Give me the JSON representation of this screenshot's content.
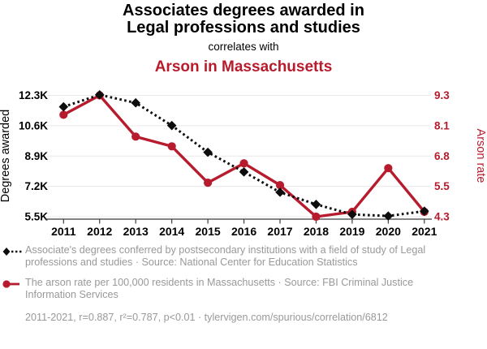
{
  "header": {
    "title_line1": "Associates degrees awarded in",
    "title_line2": "Legal professions and studies",
    "subtitle": "correlates with",
    "red_title": "Arson in Massachusetts"
  },
  "chart_data": {
    "type": "line",
    "title": "Associates degrees awarded in Legal professions and studies correlates with Arson in Massachusetts",
    "x": [
      "2011",
      "2012",
      "2013",
      "2014",
      "2015",
      "2016",
      "2017",
      "2018",
      "2019",
      "2020",
      "2021"
    ],
    "series": [
      {
        "name": "Associate's degrees in Legal professions and studies",
        "axis": "left",
        "marker": "diamond",
        "line_style": "dotted",
        "color": "#0d0d0d",
        "values": [
          11660,
          12330,
          11880,
          10610,
          9110,
          8010,
          6870,
          6190,
          5630,
          5540,
          5810
        ]
      },
      {
        "name": "Arson rate in Massachusetts",
        "axis": "right",
        "marker": "circle",
        "line_style": "solid",
        "color": "#b71c2e",
        "values": [
          8.5,
          9.3,
          7.6,
          7.2,
          5.7,
          6.5,
          5.6,
          4.3,
          4.5,
          6.3,
          4.5
        ]
      }
    ],
    "left_axis": {
      "label": "Degrees awarded",
      "tick_labels": [
        "12.3K",
        "10.6K",
        "8.9K",
        "7.2K",
        "5.5K"
      ],
      "max": 12300,
      "min": 5500
    },
    "right_axis": {
      "label": "Arson rate",
      "tick_labels": [
        "9.3",
        "8.1",
        "6.8",
        "5.5",
        "4.3"
      ],
      "max": 9.3,
      "min": 4.3
    },
    "grid": true,
    "legend_position": "bottom"
  },
  "legend": {
    "items": [
      {
        "label": "Associate's degrees conferred by postsecondary institutions with a field of study of Legal professions and studies · Source: National Center for Education Statistics",
        "marker": "black-diamond-dotted"
      },
      {
        "label": "The arson rate per 100,000 residents in Massachusetts · Source: FBI Criminal Justice Information Services",
        "marker": "red-circle-solid"
      }
    ]
  },
  "footer": {
    "stats": "2011-2021, r=0.887, r²=0.787, p<0.01 · tylervigen.com/spurious/correlation/6812"
  },
  "colors": {
    "accent_red": "#b71c2e",
    "series_black": "#0d0d0d",
    "legend_gray": "#999999",
    "gridline": "#e9e9e9"
  }
}
